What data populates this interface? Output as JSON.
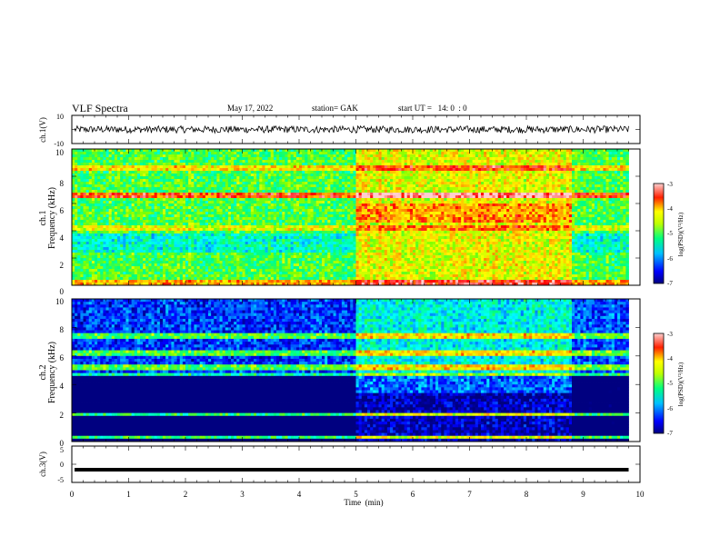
{
  "header": {
    "title": "VLF Spectra",
    "date": "May 17, 2022",
    "station": "station= GAK",
    "start": "start UT =   14: 0  : 0"
  },
  "chart_data": [
    {
      "type": "line",
      "title": "",
      "ylabel": "ch.1(V)",
      "xlim": [
        0,
        10
      ],
      "ylim": [
        -10,
        10
      ],
      "yticks": [
        "10",
        "-10"
      ],
      "description_value": "noise waveform centered near 0 V",
      "mean": 0.0,
      "amplitude": 2.5
    },
    {
      "type": "heatmap",
      "ylabel_lines": [
        "ch.1",
        "Frequency  (kHz)"
      ],
      "xlim": [
        0,
        10
      ],
      "ylim": [
        0,
        10
      ],
      "yticks": [
        "0",
        "2",
        "4",
        "6",
        "8",
        "10"
      ],
      "data_end_min": 9.8,
      "segments": [
        {
          "x": [
            0,
            5.0
          ],
          "base_level": -5.0
        },
        {
          "x": [
            5.0,
            8.8
          ],
          "base_level": -4.4
        },
        {
          "x": [
            8.8,
            9.8
          ],
          "base_level": -5.0
        }
      ],
      "colorbar": {
        "label": "log(PSD)(V²/Hz)",
        "min": -7,
        "max": -3,
        "ticks": [
          "-3",
          "-4",
          "-5",
          "-6",
          "-7"
        ]
      }
    },
    {
      "type": "heatmap",
      "ylabel_lines": [
        "ch.2",
        "Frequency  (kHz)"
      ],
      "xlim": [
        0,
        10
      ],
      "ylim": [
        0,
        10
      ],
      "yticks": [
        "0",
        "2",
        "4",
        "6",
        "8",
        "10"
      ],
      "data_end_min": 9.8,
      "segments": [
        {
          "x": [
            0,
            5.0
          ],
          "base_level": -6.4
        },
        {
          "x": [
            5.0,
            8.8
          ],
          "base_level": -5.6
        },
        {
          "x": [
            8.8,
            9.8
          ],
          "base_level": -6.3
        }
      ],
      "colorbar": {
        "label": "log(PSD)(V²/Hz)",
        "min": -7,
        "max": -3,
        "ticks": [
          "-3",
          "-4",
          "-5",
          "-6",
          "-7"
        ]
      }
    },
    {
      "type": "line",
      "ylabel": "ch.3(V)",
      "xlim": [
        0,
        10
      ],
      "ylim": [
        -5,
        5
      ],
      "yticks": [
        "5",
        "0",
        "-5"
      ],
      "constant_value": -1.5,
      "data_end_min": 9.8,
      "xlabel": "Time  (min)",
      "xticks": [
        "0",
        "1",
        "2",
        "3",
        "4",
        "5",
        "6",
        "7",
        "8",
        "9",
        "10"
      ]
    }
  ],
  "colors": {
    "axis": "#000000",
    "waveform": "#000000",
    "colormap": [
      "#000080",
      "#0000ff",
      "#0080ff",
      "#00ffff",
      "#00ff80",
      "#80ff00",
      "#ffff00",
      "#ffa000",
      "#ff0000",
      "#ffd0d0"
    ]
  }
}
